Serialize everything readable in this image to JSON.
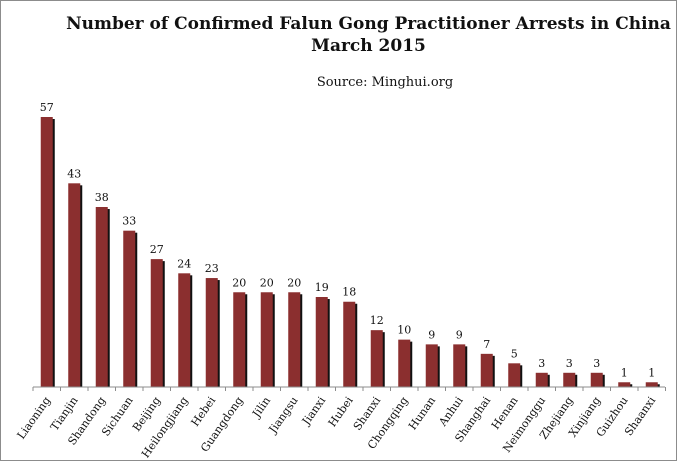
{
  "chart_data": {
    "type": "bar",
    "title": "Number of Confirmed Falun Gong Practitioner Arrests in China",
    "subtitle": "March 2015",
    "source": "Source: Minghui.org",
    "categories": [
      "Liaoning",
      "Tianjin",
      "Shandong",
      "Sichuan",
      "Beijing",
      "Heilongjiang",
      "Hebei",
      "Guangdong",
      "Jilin",
      "Jiangsu",
      "Jianxi",
      "Hubei",
      "Shanxi",
      "Chongqing",
      "Hunan",
      "Anhui",
      "Shanghai",
      "Henan",
      "Neimonggu",
      "Zhejiang",
      "Xinjiang",
      "Guizhou",
      "Shaanxi"
    ],
    "values": [
      57,
      43,
      38,
      33,
      27,
      24,
      23,
      20,
      20,
      20,
      19,
      18,
      12,
      10,
      9,
      9,
      7,
      5,
      3,
      3,
      3,
      1,
      1
    ],
    "xlabel": "",
    "ylabel": "",
    "ylim": [
      0,
      60
    ],
    "grid": false,
    "legend": "none",
    "colors": {
      "bar": "#8b2f2f",
      "bar_shadow": "#111111",
      "axis": "#8c8c8c"
    }
  }
}
